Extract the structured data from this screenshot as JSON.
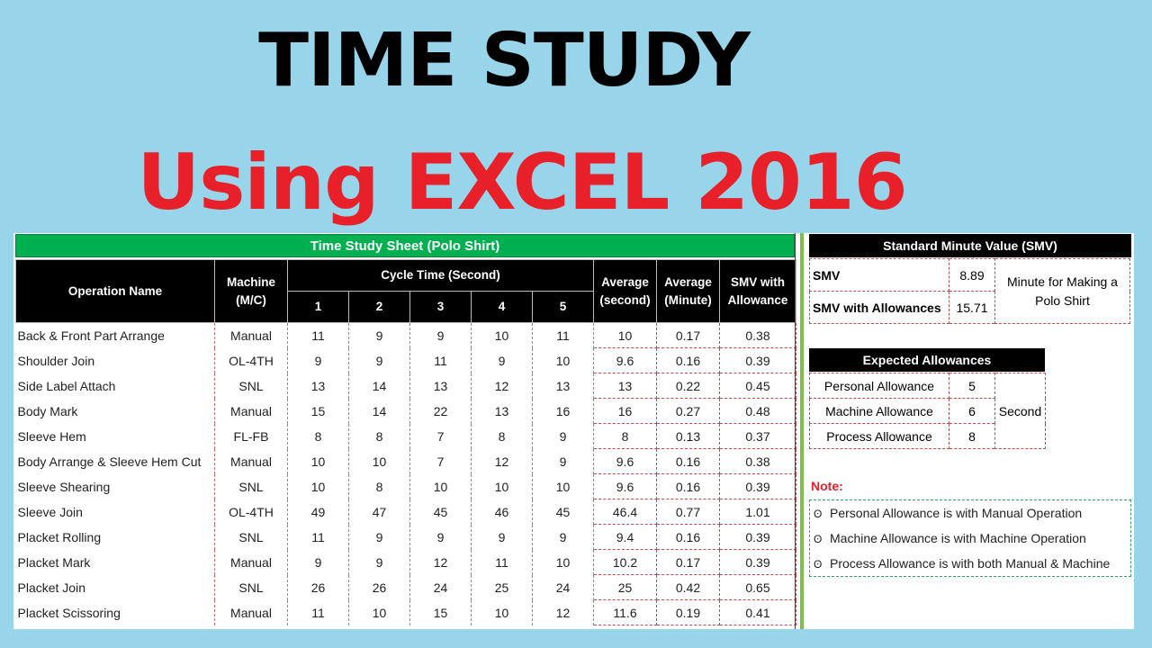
{
  "title_line1": "TIME STUDY",
  "title_line2": "Using EXCEL 2016",
  "sheet_title": "Time Study Sheet (Polo Shirt)",
  "headers": {
    "operation": "Operation Name",
    "machine_l1": "Machine",
    "machine_l2": "(M/C)",
    "cycle": "Cycle Time (Second)",
    "c1": "1",
    "c2": "2",
    "c3": "3",
    "c4": "4",
    "c5": "5",
    "avg_sec_l1": "Average",
    "avg_sec_l2": "(second)",
    "avg_min_l1": "Average",
    "avg_min_l2": "(Minute)",
    "smv_l1": "SMV with",
    "smv_l2": "Allowance"
  },
  "rows": [
    {
      "op": "Back & Front Part Arrange",
      "mc": "Manual",
      "c": [
        "11",
        "9",
        "9",
        "10",
        "11"
      ],
      "avg_s": "10",
      "avg_m": "0.17",
      "smv": "0.38"
    },
    {
      "op": "Shoulder Join",
      "mc": "OL-4TH",
      "c": [
        "9",
        "9",
        "11",
        "9",
        "10"
      ],
      "avg_s": "9.6",
      "avg_m": "0.16",
      "smv": "0.39"
    },
    {
      "op": "Side Label Attach",
      "mc": "SNL",
      "c": [
        "13",
        "14",
        "13",
        "12",
        "13"
      ],
      "avg_s": "13",
      "avg_m": "0.22",
      "smv": "0.45"
    },
    {
      "op": "Body Mark",
      "mc": "Manual",
      "c": [
        "15",
        "14",
        "22",
        "13",
        "16"
      ],
      "avg_s": "16",
      "avg_m": "0.27",
      "smv": "0.48"
    },
    {
      "op": "Sleeve Hem",
      "mc": "FL-FB",
      "c": [
        "8",
        "8",
        "7",
        "8",
        "9"
      ],
      "avg_s": "8",
      "avg_m": "0.13",
      "smv": "0.37"
    },
    {
      "op": "Body Arrange & Sleeve Hem Cut",
      "mc": "Manual",
      "c": [
        "10",
        "10",
        "7",
        "12",
        "9"
      ],
      "avg_s": "9.6",
      "avg_m": "0.16",
      "smv": "0.38"
    },
    {
      "op": "Sleeve Shearing",
      "mc": "SNL",
      "c": [
        "10",
        "8",
        "10",
        "10",
        "10"
      ],
      "avg_s": "9.6",
      "avg_m": "0.16",
      "smv": "0.39"
    },
    {
      "op": "Sleeve Join",
      "mc": "OL-4TH",
      "c": [
        "49",
        "47",
        "45",
        "46",
        "45"
      ],
      "avg_s": "46.4",
      "avg_m": "0.77",
      "smv": "1.01"
    },
    {
      "op": "Placket Rolling",
      "mc": "SNL",
      "c": [
        "11",
        "9",
        "9",
        "9",
        "9"
      ],
      "avg_s": "9.4",
      "avg_m": "0.16",
      "smv": "0.39"
    },
    {
      "op": "Placket Mark",
      "mc": "Manual",
      "c": [
        "9",
        "9",
        "12",
        "11",
        "10"
      ],
      "avg_s": "10.2",
      "avg_m": "0.17",
      "smv": "0.39"
    },
    {
      "op": "Placket Join",
      "mc": "SNL",
      "c": [
        "26",
        "26",
        "24",
        "25",
        "24"
      ],
      "avg_s": "25",
      "avg_m": "0.42",
      "smv": "0.65"
    },
    {
      "op": "Placket Scissoring",
      "mc": "Manual",
      "c": [
        "11",
        "10",
        "15",
        "10",
        "12"
      ],
      "avg_s": "11.6",
      "avg_m": "0.19",
      "smv": "0.41"
    }
  ],
  "smv_panel": {
    "title": "Standard Minute Value (SMV)",
    "smv_label": "SMV",
    "smv_value": "8.89",
    "smv_allow_label": "SMV with Allowances",
    "smv_allow_value": "15.71",
    "unit_l1": "Minute for Making a",
    "unit_l2": "Polo Shirt"
  },
  "allowances": {
    "title": "Expected Allowances",
    "items": [
      {
        "label": "Personal Allowance",
        "value": "5"
      },
      {
        "label": "Machine Allowance",
        "value": "6"
      },
      {
        "label": "Process Allowance",
        "value": "8"
      }
    ],
    "unit": "Second"
  },
  "note": {
    "label": "Note:",
    "bullet": "ʘ",
    "items": [
      "Personal Allowance is with Manual Operation",
      "Machine Allowance is with Machine Operation",
      "Process Allowance is with both Manual & Machine"
    ]
  },
  "colors": {
    "background": "#99d5ea",
    "title_red": "#e8202a",
    "sheet_title_green": "#00b050",
    "header_black": "#000000"
  }
}
